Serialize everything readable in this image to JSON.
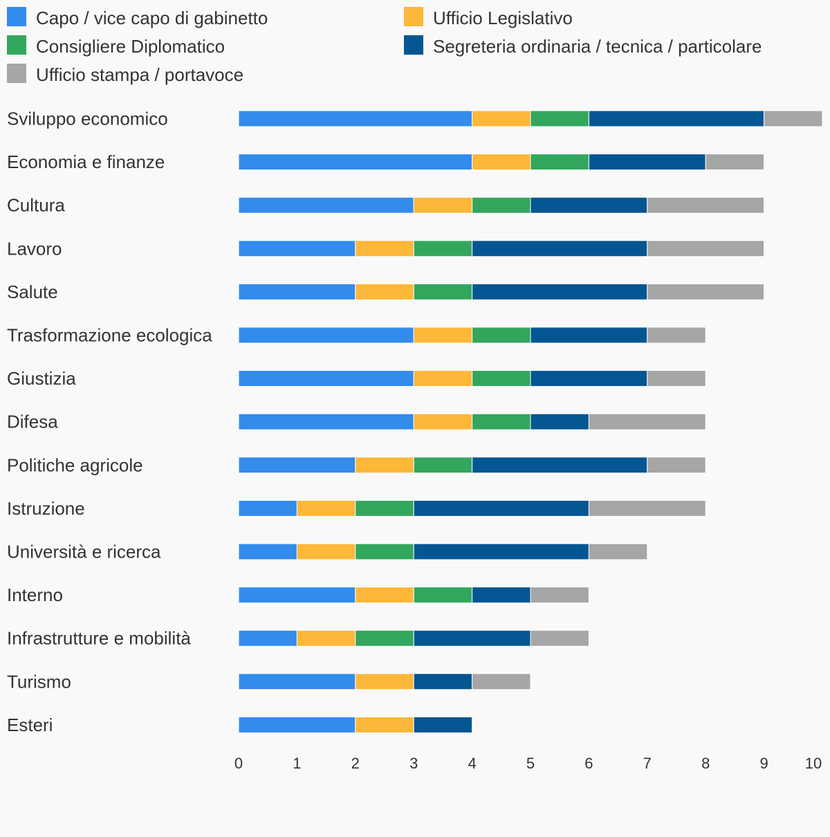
{
  "chart_data": {
    "type": "bar",
    "orientation": "horizontal",
    "stacked": true,
    "title": "",
    "xlabel": "",
    "ylabel": "",
    "xlim": [
      0,
      10
    ],
    "x_ticks": [
      "0",
      "1",
      "2",
      "3",
      "4",
      "5",
      "6",
      "7",
      "8",
      "9",
      "10"
    ],
    "grid": false,
    "legend_position": "top",
    "categories": [
      "Sviluppo economico",
      "Economia e finanze",
      "Cultura",
      "Lavoro",
      "Salute",
      "Trasformazione ecologica",
      "Giustizia",
      "Difesa",
      "Politiche agricole",
      "Istruzione",
      "Università e ricerca",
      "Interno",
      "Infrastrutture e mobilità",
      "Turismo",
      "Esteri"
    ],
    "series": [
      {
        "name": "Capo / vice capo di gabinetto",
        "color": "#338bec",
        "values": [
          4,
          4,
          3,
          2,
          2,
          3,
          3,
          3,
          2,
          1,
          1,
          2,
          1,
          2,
          2
        ]
      },
      {
        "name": "Ufficio Legislativo",
        "color": "#fdb739",
        "values": [
          1,
          1,
          1,
          1,
          1,
          1,
          1,
          1,
          1,
          1,
          1,
          1,
          1,
          1,
          1
        ]
      },
      {
        "name": "Consigliere Diplomatico",
        "color": "#33a65e",
        "values": [
          1,
          1,
          1,
          1,
          1,
          1,
          1,
          1,
          1,
          1,
          1,
          1,
          1,
          0,
          0
        ]
      },
      {
        "name": "Segreteria ordinaria / tecnica / particolare",
        "color": "#045692",
        "values": [
          3,
          2,
          2,
          3,
          3,
          2,
          2,
          1,
          3,
          3,
          3,
          1,
          2,
          1,
          1
        ]
      },
      {
        "name": "Ufficio stampa / portavoce",
        "color": "#a6a6a6",
        "values": [
          1,
          1,
          2,
          2,
          2,
          1,
          1,
          2,
          1,
          2,
          1,
          1,
          1,
          1,
          0
        ]
      }
    ]
  }
}
